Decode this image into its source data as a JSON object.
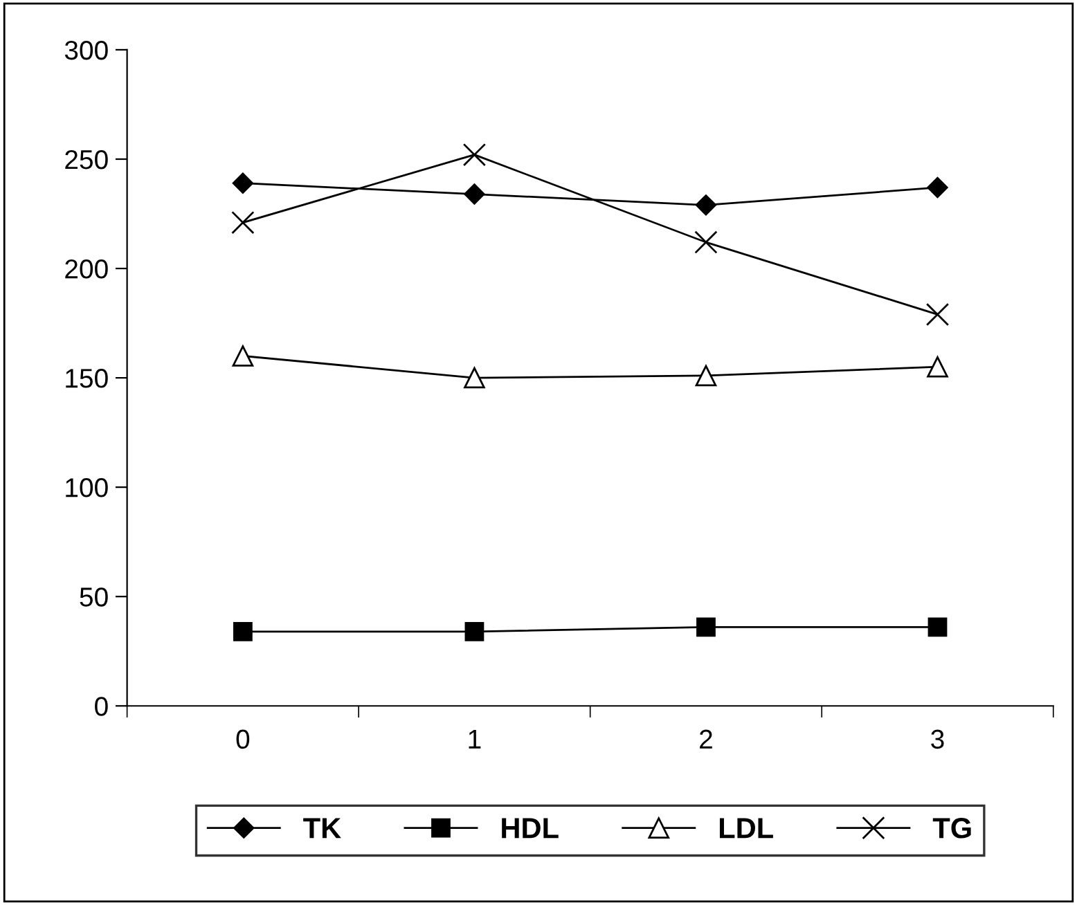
{
  "chart_data": {
    "type": "line",
    "categories": [
      "0",
      "1",
      "2",
      "3"
    ],
    "ylim": [
      0,
      300
    ],
    "yticks": [
      0,
      50,
      100,
      150,
      200,
      250,
      300
    ],
    "grid": false,
    "legend": "bottom",
    "series": [
      {
        "name": "TK",
        "color": "#000000",
        "marker": "diamond",
        "values": [
          239,
          234,
          229,
          237
        ]
      },
      {
        "name": "HDL",
        "color": "#000000",
        "marker": "square",
        "values": [
          34,
          34,
          36,
          36
        ]
      },
      {
        "name": "LDL",
        "color": "#000000",
        "marker": "triangle",
        "values": [
          160,
          150,
          151,
          155
        ]
      },
      {
        "name": "TG",
        "color": "#000000",
        "marker": "cross",
        "values": [
          221,
          252,
          212,
          179
        ]
      }
    ]
  }
}
